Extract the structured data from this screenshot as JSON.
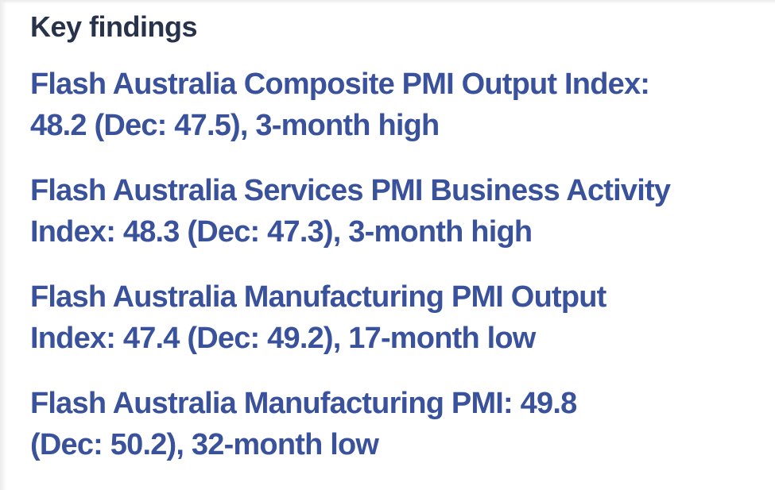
{
  "heading": "Key findings",
  "findings": [
    {
      "text": "Flash Australia Composite PMI Output Index: 48.2 (Dec: 47.5), 3-month high",
      "lines": [
        "Flash Australia Composite PMI Output Index:",
        "48.2 (Dec: 47.5), 3-month high"
      ]
    },
    {
      "text": "Flash Australia Services PMI Business Activity Index: 48.3 (Dec: 47.3), 3-month high",
      "lines": [
        "Flash Australia Services PMI Business Activity",
        "Index: 48.3 (Dec: 47.3), 3-month high"
      ]
    },
    {
      "text": "Flash Australia Manufacturing PMI Output Index: 47.4 (Dec: 49.2), 17-month low",
      "lines": [
        "Flash Australia Manufacturing PMI Output",
        "Index: 47.4 (Dec: 49.2), 17-month low"
      ]
    },
    {
      "text": "Flash Australia Manufacturing PMI: 49.8 (Dec: 50.2), 32-month low",
      "lines": [
        "Flash Australia Manufacturing PMI: 49.8",
        "(Dec: 50.2), 32-month low"
      ]
    }
  ],
  "colors": {
    "heading": "#29324b",
    "body": "#3a529b",
    "background": "#ffffff",
    "edge": "#ebebeb"
  }
}
